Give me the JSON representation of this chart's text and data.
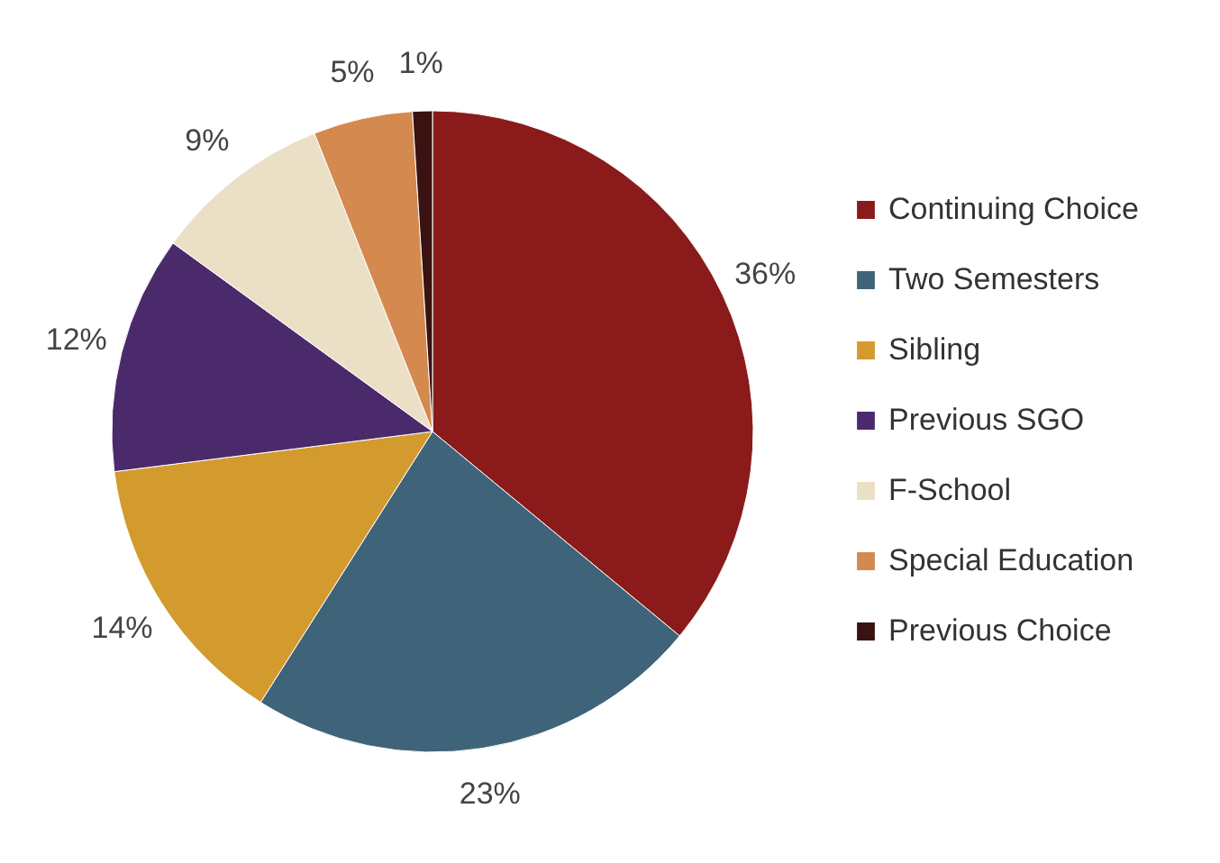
{
  "chart_data": {
    "type": "pie",
    "categories": [
      "Continuing Choice",
      "Two Semesters",
      "Sibling",
      "Previous SGO",
      "F-School",
      "Special Education",
      "Previous Choice"
    ],
    "values": [
      36,
      23,
      14,
      12,
      9,
      5,
      1
    ],
    "value_labels": [
      "36%",
      "23%",
      "14%",
      "12%",
      "9%",
      "5%",
      "1%"
    ],
    "colors": [
      "#8b1a1a",
      "#3f6479",
      "#d39a2e",
      "#4b2a6b",
      "#ebe0c6",
      "#d4894f",
      "#3a1212"
    ],
    "legend": "right"
  }
}
